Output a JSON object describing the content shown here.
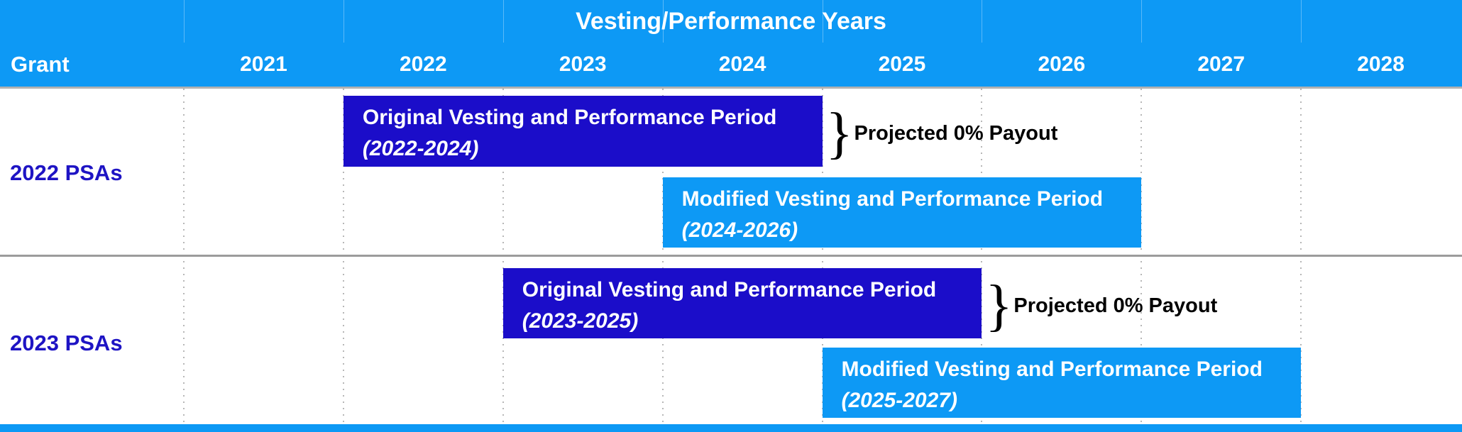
{
  "colors": {
    "header_blue": "#0D99F5",
    "modified_bar_blue": "#0D99F5",
    "original_bar_blue": "#1B0DC9",
    "row_label_blue": "#1E14C4",
    "annotation_text_black": "#000000",
    "grid_dot_gray": "#b7b7b7",
    "separator_gray": "#9c9c9c"
  },
  "chart_data": {
    "type": "bar",
    "subtype": "gantt-timeline",
    "title": "Vesting/Performance Years",
    "row_header": "Grant",
    "x_ticks": [
      "2021",
      "2022",
      "2023",
      "2024",
      "2025",
      "2026",
      "2027",
      "2028"
    ],
    "x_range": [
      2021,
      2029
    ],
    "grid": "dotted-vertical-year-boundaries",
    "legend_position": "none",
    "rows": [
      {
        "label": "2022 PSAs",
        "bars": [
          {
            "kind": "original",
            "line1": "Original Vesting and Performance Period",
            "line2": "(2022-2024)",
            "start": 2022,
            "end": 2024,
            "color": "#1B0DC9",
            "text_color": "#ffffff"
          },
          {
            "kind": "modified",
            "line1": "Modified Vesting and Performance Period",
            "line2": "(2024-2026)",
            "start": 2024,
            "end": 2026,
            "color": "#0D99F5",
            "text_color": "#ffffff"
          }
        ],
        "annotation": {
          "brace": "}",
          "text": "Projected 0% Payout",
          "attached_to": "original"
        }
      },
      {
        "label": "2023 PSAs",
        "bars": [
          {
            "kind": "original",
            "line1": "Original Vesting and Performance Period",
            "line2": "(2023-2025)",
            "start": 2023,
            "end": 2025,
            "color": "#1B0DC9",
            "text_color": "#ffffff"
          },
          {
            "kind": "modified",
            "line1": "Modified Vesting and Performance Period",
            "line2": "(2025-2027)",
            "start": 2025,
            "end": 2027,
            "color": "#0D99F5",
            "text_color": "#ffffff"
          }
        ],
        "annotation": {
          "brace": "}",
          "text": "Projected 0% Payout",
          "attached_to": "original"
        }
      }
    ]
  }
}
